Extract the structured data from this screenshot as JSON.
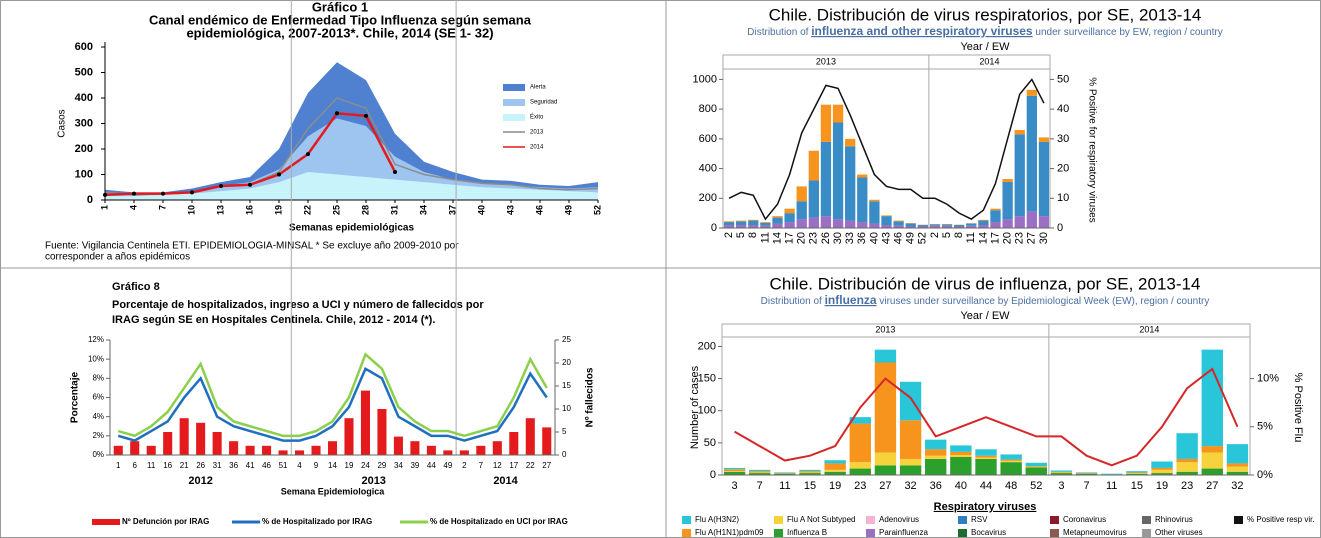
{
  "chart_data": [
    {
      "type": "area",
      "title": [
        "Gráfico 1",
        "Canal  endémico de Enfermedad Tipo Influenza según semana",
        "epidemiológica, 2007-2013*. Chile, 2014  (SE 1- 32)"
      ],
      "xlabel": "Semanas epidemiológicas",
      "ylabel": "Casos",
      "source": [
        "Fuente: Vigilancia Centinela ETI. EPIDEMIOLOGIA-MINSAL * Se excluye año 2009-2010 por",
        "corresponder a años epidémicos"
      ],
      "x": [
        1,
        4,
        7,
        10,
        13,
        16,
        19,
        22,
        25,
        28,
        31,
        34,
        37,
        40,
        43,
        46,
        49,
        52
      ],
      "xlim": [
        1,
        52
      ],
      "xticks": [
        1,
        4,
        7,
        10,
        13,
        16,
        19,
        22,
        25,
        28,
        31,
        34,
        37,
        40,
        43,
        46,
        49,
        52
      ],
      "ylim": [
        0,
        600
      ],
      "yticks": [
        0,
        100,
        200,
        300,
        400,
        500,
        600
      ],
      "series": [
        {
          "name": "Alerta",
          "kind": "area",
          "color": "#4f81d0",
          "values": [
            40,
            30,
            30,
            45,
            70,
            90,
            200,
            420,
            540,
            470,
            260,
            150,
            110,
            80,
            75,
            60,
            55,
            70
          ]
        },
        {
          "name": "Seguridad",
          "kind": "area",
          "color": "#9ec5f0",
          "values": [
            25,
            20,
            25,
            35,
            55,
            70,
            120,
            250,
            320,
            290,
            170,
            110,
            80,
            65,
            60,
            50,
            45,
            50
          ]
        },
        {
          "name": "Éxito",
          "kind": "area",
          "color": "#c9f3fb",
          "values": [
            15,
            15,
            20,
            25,
            35,
            45,
            70,
            110,
            100,
            90,
            80,
            70,
            60,
            50,
            45,
            40,
            35,
            30
          ]
        },
        {
          "name": "2013",
          "kind": "line",
          "color": "#8c8c8c",
          "values": [
            30,
            20,
            25,
            30,
            55,
            60,
            110,
            280,
            400,
            360,
            140,
            100,
            80,
            65,
            60,
            45,
            40,
            45
          ]
        },
        {
          "name": "2014",
          "kind": "line",
          "color": "#e41a1c",
          "values": [
            20,
            25,
            25,
            30,
            55,
            60,
            100,
            180,
            340,
            330,
            110,
            null,
            null,
            null,
            null,
            null,
            null,
            null
          ]
        }
      ]
    },
    {
      "type": "bar",
      "title": "Chile. Distribución de virus respiratorios, por SE, 2013-14",
      "subtitle": [
        "Distribution of ",
        "influenza and other respiratory viruses",
        " under surveillance by EW, region / country"
      ],
      "axis_caption": "Year  /  EW",
      "y2label": "% Positive for respiratory viruses",
      "panels": [
        {
          "label": "2013",
          "categories": [
            "2",
            "5",
            "8",
            "11",
            "14",
            "17",
            "20",
            "23",
            "26",
            "30",
            "33",
            "36",
            "40",
            "43",
            "46",
            "49",
            "52"
          ]
        },
        {
          "label": "2014",
          "categories": [
            "2",
            "5",
            "8",
            "11",
            "14",
            "17",
            "20",
            "23",
            "27",
            "30"
          ]
        }
      ],
      "ylim": [
        0,
        1050
      ],
      "yticks": [
        0,
        200,
        400,
        600,
        800,
        1000
      ],
      "y2lim": [
        0,
        52.5
      ],
      "y2ticks": [
        0,
        10,
        20,
        30,
        40,
        50
      ],
      "series": [
        {
          "kind": "bar",
          "color": "#9b6fc4",
          "values": [
            20,
            20,
            20,
            15,
            30,
            40,
            60,
            70,
            80,
            60,
            50,
            40,
            30,
            20,
            15,
            10,
            10,
            15,
            15,
            10,
            15,
            20,
            40,
            60,
            80,
            110,
            80
          ]
        },
        {
          "kind": "bar",
          "color": "#3a8cc6",
          "values": [
            20,
            25,
            30,
            20,
            40,
            60,
            120,
            250,
            500,
            650,
            500,
            300,
            150,
            60,
            30,
            20,
            10,
            10,
            10,
            10,
            15,
            30,
            80,
            250,
            550,
            780,
            500
          ]
        },
        {
          "kind": "bar",
          "color": "#f7941d",
          "values": [
            5,
            5,
            5,
            5,
            10,
            30,
            100,
            200,
            250,
            120,
            50,
            20,
            10,
            5,
            5,
            3,
            2,
            2,
            2,
            2,
            2,
            5,
            10,
            20,
            30,
            40,
            30
          ]
        },
        {
          "kind": "line",
          "axis": "y2",
          "color": "#111111",
          "values": [
            10,
            12,
            11,
            3,
            8,
            18,
            32,
            40,
            48,
            47,
            38,
            28,
            18,
            14,
            13,
            13,
            10,
            10,
            8,
            5,
            3,
            6,
            15,
            30,
            45,
            50,
            42
          ]
        }
      ]
    },
    {
      "type": "bar",
      "label": "Gráfico 8",
      "title": [
        "Porcentaje de hospitalizados, ingreso a UCI y número de  fallecidos por",
        "IRAG según SE en Hospitales Centinela. Chile, 2012 - 2014 (*)."
      ],
      "xlabel": "Semana Epidemiologica",
      "ylabel": "Porcentaje",
      "y2label": "Nº fallecidos",
      "panels": [
        {
          "label": "2012",
          "categories": [
            "1",
            "6",
            "11",
            "16",
            "21",
            "26",
            "31",
            "36",
            "41",
            "46",
            "51"
          ]
        },
        {
          "label": "2013",
          "categories": [
            "4",
            "9",
            "14",
            "19",
            "24",
            "29",
            "34",
            "39",
            "44",
            "49"
          ]
        },
        {
          "label": "2014",
          "categories": [
            "2",
            "7",
            "12",
            "17",
            "22",
            "27"
          ]
        }
      ],
      "ylim": [
        0,
        12
      ],
      "yticks": [
        {
          "value": 0,
          "label": "0%"
        },
        {
          "value": 2,
          "label": "2%"
        },
        {
          "value": 4,
          "label": "4%"
        },
        {
          "value": 6,
          "label": "6%"
        },
        {
          "value": 8,
          "label": "8%"
        },
        {
          "value": 10,
          "label": "10%"
        },
        {
          "value": 12,
          "label": "12%"
        }
      ],
      "y2lim": [
        0,
        25
      ],
      "y2ticks": [
        0,
        5,
        10,
        15,
        20,
        25
      ],
      "series": [
        {
          "name": "Nº Defunción por IRAG",
          "kind": "bar",
          "axis": "y2",
          "color": "#e41a1c",
          "values": [
            2,
            3,
            2,
            5,
            8,
            7,
            5,
            3,
            2,
            2,
            1,
            1,
            2,
            3,
            8,
            14,
            10,
            4,
            3,
            2,
            1,
            1,
            2,
            3,
            5,
            8,
            6
          ]
        },
        {
          "name": "% de Hospitalizado por IRAG",
          "kind": "line",
          "color": "#1f6fc0",
          "values": [
            2,
            1.5,
            2.5,
            3.5,
            6,
            8,
            4,
            3,
            2.5,
            2,
            1.5,
            1.5,
            2,
            3,
            5,
            9,
            8,
            4,
            3,
            2,
            2,
            1.5,
            2,
            2.5,
            5,
            8.5,
            6
          ]
        },
        {
          "name": "% de Hospitalizado en UCI por IRAG",
          "kind": "line",
          "color": "#8ccf4d",
          "values": [
            2.5,
            2,
            3,
            4.5,
            7,
            9.5,
            5,
            3.5,
            3,
            2.5,
            2,
            2,
            2.5,
            3.5,
            6,
            10.5,
            9,
            5,
            3.5,
            2.5,
            2.5,
            2,
            2.5,
            3,
            6,
            10,
            7
          ]
        }
      ]
    },
    {
      "type": "bar",
      "title": "Chile. Distribución de virus de influenza, por SE, 2013-14",
      "subtitle": [
        "Distribution of ",
        "influenza",
        " viruses under surveillance by Epidemiological Week (EW), region / country"
      ],
      "axis_caption": "Year  /  EW",
      "ylabel": "Number of cases",
      "y2label": "% Positive Flu",
      "panels": [
        {
          "label": "2013",
          "categories": [
            "3",
            "7",
            "11",
            "15",
            "19",
            "23",
            "27",
            "32",
            "36",
            "40",
            "44",
            "48",
            "52"
          ]
        },
        {
          "label": "2014",
          "categories": [
            "3",
            "7",
            "11",
            "15",
            "19",
            "23",
            "27",
            "32"
          ]
        }
      ],
      "ylim": [
        0,
        210
      ],
      "yticks": [
        0,
        50,
        100,
        150,
        200
      ],
      "y2lim": [
        0,
        14
      ],
      "y2ticks": [
        {
          "value": 0,
          "label": "0%"
        },
        {
          "value": 5,
          "label": "5%"
        },
        {
          "value": 10,
          "label": "10%"
        }
      ],
      "series": [
        {
          "kind": "bar",
          "color": "#2ca02c",
          "values": [
            5,
            3,
            2,
            3,
            5,
            10,
            15,
            15,
            25,
            28,
            25,
            20,
            12,
            3,
            2,
            1,
            2,
            3,
            5,
            10,
            5
          ]
        },
        {
          "kind": "bar",
          "color": "#f6d23c",
          "values": [
            1,
            1,
            0,
            1,
            3,
            10,
            20,
            10,
            5,
            3,
            2,
            2,
            1,
            1,
            0,
            0,
            1,
            5,
            15,
            25,
            8
          ]
        },
        {
          "kind": "bar",
          "color": "#f7941d",
          "values": [
            3,
            2,
            1,
            2,
            10,
            60,
            140,
            60,
            10,
            5,
            3,
            2,
            1,
            1,
            1,
            0,
            1,
            3,
            5,
            10,
            5
          ]
        },
        {
          "kind": "bar",
          "color": "#29c5d8",
          "values": [
            2,
            2,
            1,
            2,
            5,
            10,
            20,
            60,
            15,
            10,
            10,
            8,
            5,
            2,
            1,
            1,
            2,
            10,
            40,
            150,
            30
          ]
        },
        {
          "kind": "line",
          "axis": "y2",
          "color": "#d62728",
          "values": [
            4.5,
            3,
            1.5,
            2,
            3,
            7,
            10,
            8,
            4,
            5,
            6,
            5,
            4,
            4,
            2,
            1,
            2,
            5,
            9,
            11,
            5
          ]
        }
      ],
      "legend": {
        "title": "Respiratory viruses",
        "items": [
          {
            "name": "Flu A(H3N2)",
            "color": "#29c5d8"
          },
          {
            "name": "Flu A Not Subtyped",
            "color": "#f6d23c"
          },
          {
            "name": "Adenovirus",
            "color": "#f5b3d1"
          },
          {
            "name": "RSV",
            "color": "#2f7fc1"
          },
          {
            "name": "Coronavirus",
            "color": "#8b1a2b"
          },
          {
            "name": "Rhinovirus",
            "color": "#666666"
          },
          {
            "name": "% Positive resp vir.",
            "color": "#111111"
          },
          {
            "name": "Flu A(H1N1)pdm09",
            "color": "#f7941d"
          },
          {
            "name": "Influenza B",
            "color": "#2ca02c"
          },
          {
            "name": "Parainfluenza",
            "color": "#9b6fc4"
          },
          {
            "name": "Bocavirus",
            "color": "#1e6b2e"
          },
          {
            "name": "Metapneumovirus",
            "color": "#8c5a4a"
          },
          {
            "name": "Other viruses",
            "color": "#999999"
          }
        ]
      }
    }
  ]
}
